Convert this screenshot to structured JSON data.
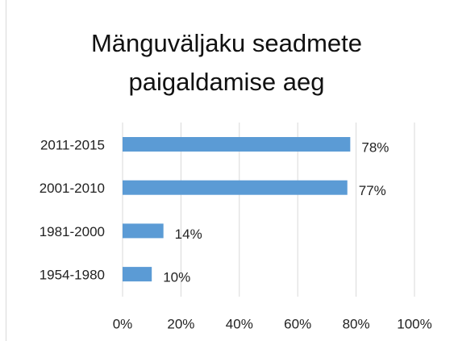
{
  "chart_data": {
    "type": "bar",
    "orientation": "horizontal",
    "title": "Mänguväljaku seadmete paigaldamise aeg",
    "categories": [
      "2011-2015",
      "2001-2010",
      "1981-2000",
      "1954-1980"
    ],
    "values": [
      78,
      77,
      14,
      10
    ],
    "value_labels": [
      "78%",
      "77%",
      "14%",
      "10%"
    ],
    "color": "#5b9bd5",
    "xlim": [
      0,
      100
    ],
    "xticks": [
      {
        "value": 0,
        "label": "0%"
      },
      {
        "value": 20,
        "label": "20%"
      },
      {
        "value": 40,
        "label": "40%"
      },
      {
        "value": 60,
        "label": "60%"
      },
      {
        "value": 80,
        "label": "80%"
      },
      {
        "value": 100,
        "label": "100%"
      }
    ],
    "grid": true
  }
}
